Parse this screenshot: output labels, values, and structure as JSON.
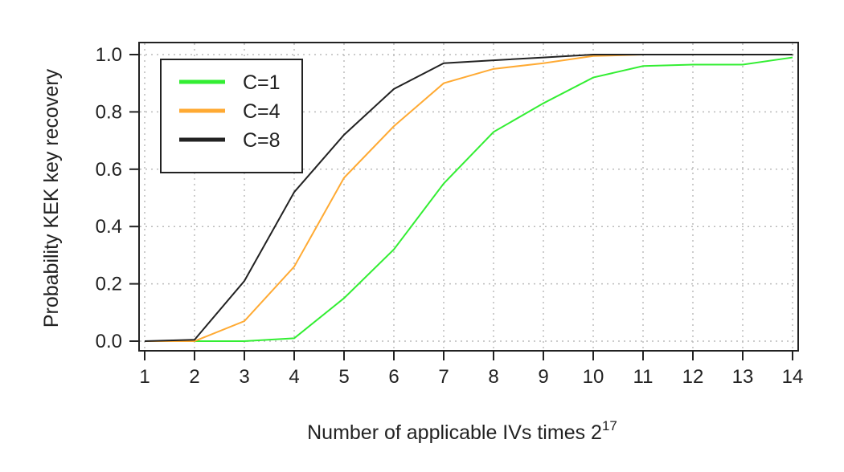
{
  "chart_data": {
    "type": "line",
    "title": "",
    "xlabel": "Number of applicable IVs times 2",
    "xlabel_superscript": "17",
    "ylabel": "Probability KEK key recovery",
    "x": [
      1,
      2,
      3,
      4,
      5,
      6,
      7,
      8,
      9,
      10,
      11,
      12,
      13,
      14
    ],
    "xlim": [
      1,
      14
    ],
    "ylim": [
      0,
      1
    ],
    "xticks": [
      "1",
      "2",
      "3",
      "4",
      "5",
      "6",
      "7",
      "8",
      "9",
      "10",
      "11",
      "12",
      "13",
      "14"
    ],
    "yticks": [
      "0.0",
      "0.2",
      "0.4",
      "0.6",
      "0.8",
      "1.0"
    ],
    "grid": true,
    "legend_position": "top-left",
    "series": [
      {
        "name": "C=1",
        "color": "#33ee33",
        "values": [
          0,
          0,
          0,
          0.01,
          0.15,
          0.32,
          0.55,
          0.73,
          0.83,
          0.92,
          0.96,
          0.965,
          0.965,
          0.99
        ]
      },
      {
        "name": "C=4",
        "color": "#ffaa33",
        "values": [
          0,
          0,
          0.07,
          0.26,
          0.57,
          0.75,
          0.9,
          0.95,
          0.97,
          0.995,
          1,
          1,
          1,
          1
        ]
      },
      {
        "name": "C=8",
        "color": "#222222",
        "values": [
          0,
          0.005,
          0.21,
          0.52,
          0.72,
          0.88,
          0.97,
          0.98,
          0.99,
          1,
          1,
          1,
          1,
          1
        ]
      }
    ]
  }
}
